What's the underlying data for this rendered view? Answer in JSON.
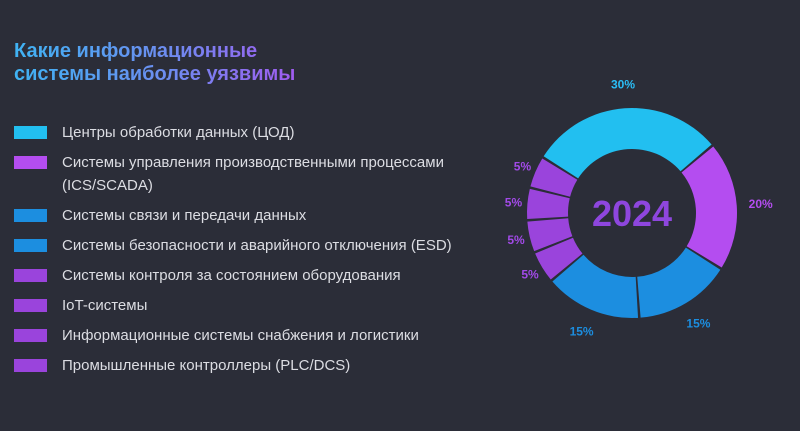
{
  "title_lines": [
    "Какие информационные",
    "системы наиболее уязвимы"
  ],
  "chart_data": {
    "type": "pie",
    "center_label": "2024",
    "categories": [
      "Центры обработки данных (ЦОД)",
      "Системы управления производственными процессами (ICS/SCADA)",
      "Системы связи и передачи данных",
      "Системы безопасности и аварийного отключения (ESD)",
      "Системы контроля за состоянием оборудования",
      "IoT-системы",
      "Информационные системы снабжения и логистики",
      "Промышленные контроллеры (PLC/DCS)"
    ],
    "values": [
      30,
      20,
      15,
      15,
      5,
      5,
      5,
      5
    ],
    "value_labels": [
      "30%",
      "20%",
      "15%",
      "15%",
      "5%",
      "5%",
      "5%",
      "5%"
    ],
    "colors": [
      "#22bff0",
      "#b44df0",
      "#1c8ee0",
      "#1c8ee0",
      "#9a44dc",
      "#9a44dc",
      "#9a44dc",
      "#9a44dc"
    ],
    "label_colors": [
      "#2bbdf5",
      "#b44df0",
      "#1c8ee0",
      "#1c8ee0",
      "#a24ae8",
      "#a24ae8",
      "#a24ae8",
      "#a24ae8"
    ]
  }
}
